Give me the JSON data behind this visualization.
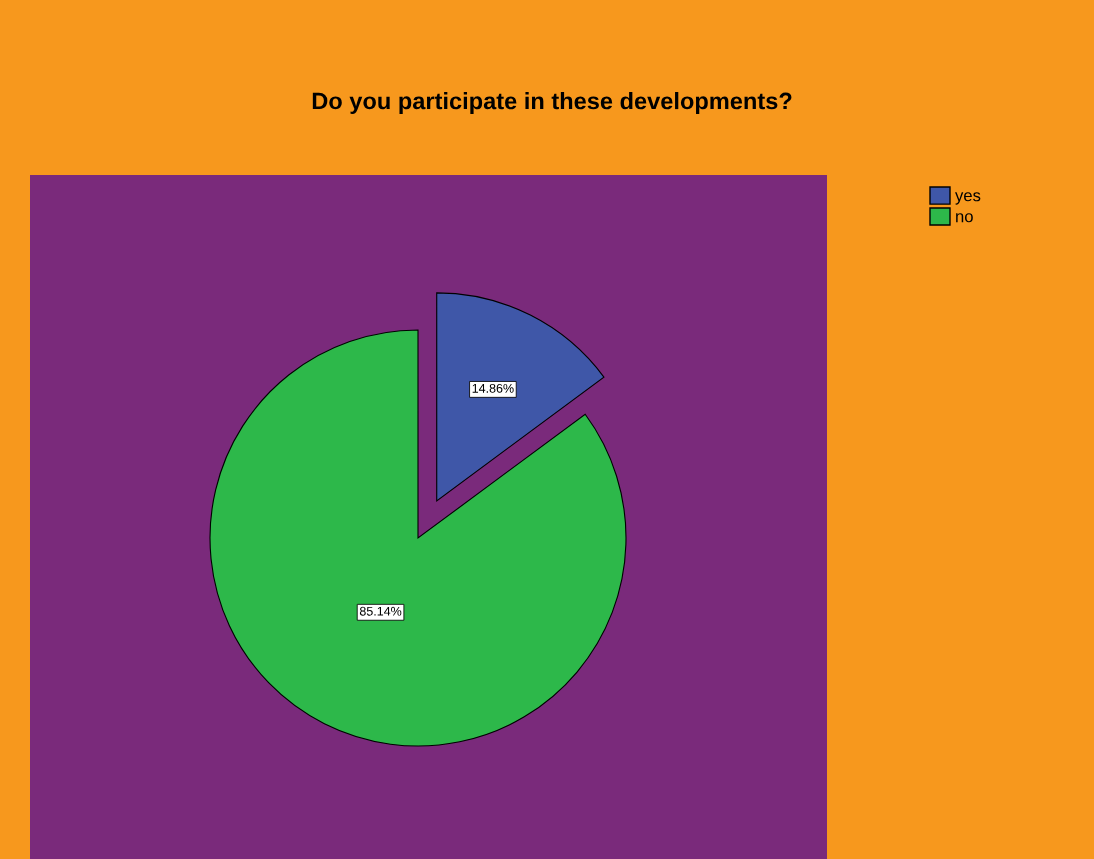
{
  "chart_data": {
    "type": "pie",
    "title": "Do you participate in these developments?",
    "categories": [
      "yes",
      "no"
    ],
    "values": [
      14.86,
      85.14
    ],
    "colors": [
      "#3f57a8",
      "#2db84a"
    ],
    "value_labels": [
      "14.86%",
      "85.14%"
    ],
    "legend": "top right"
  }
}
